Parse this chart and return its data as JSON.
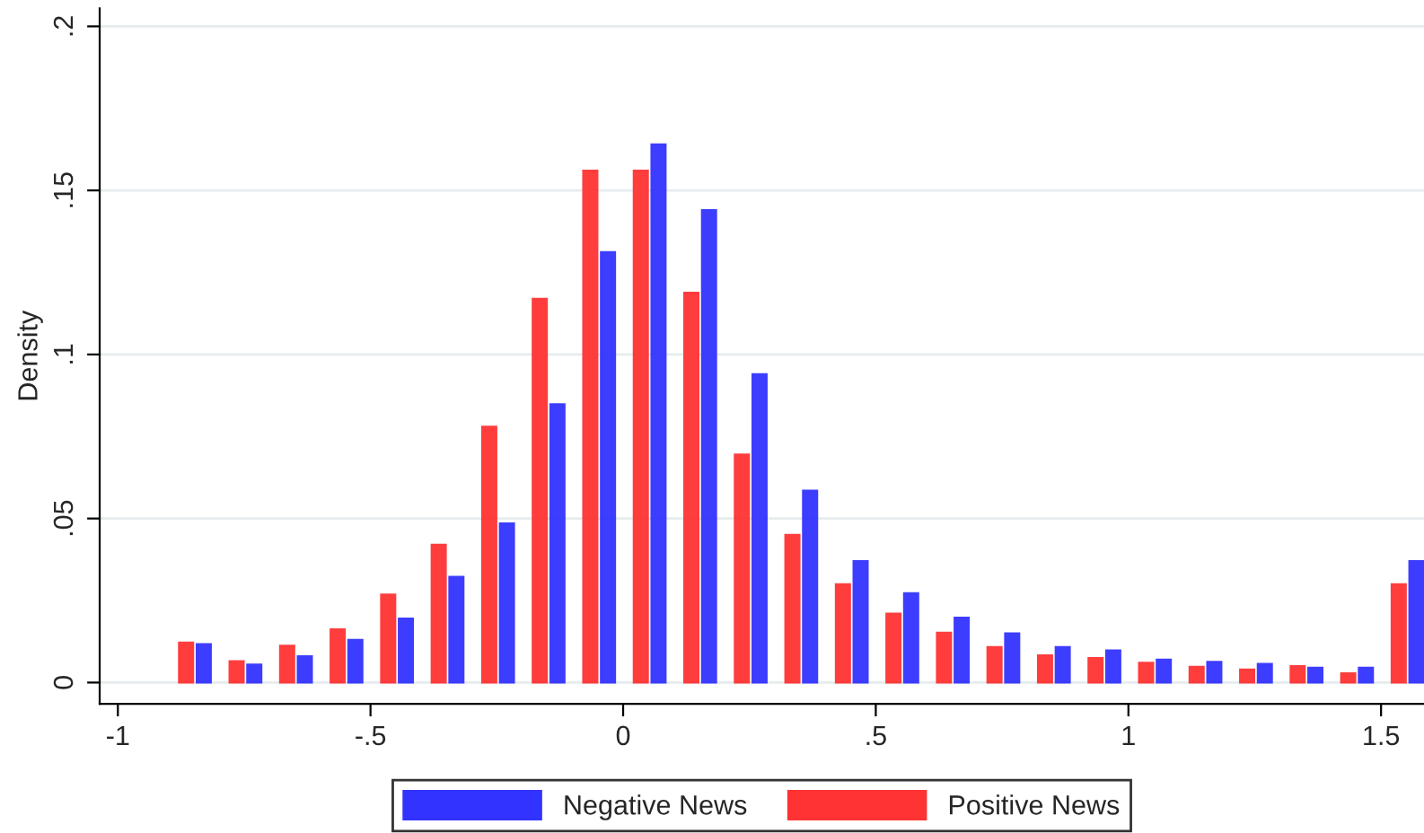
{
  "chart_data": {
    "type": "bar",
    "ylabel": "Density",
    "xlim": [
      -1.036,
      1.585
    ],
    "ylim": [
      -0.0065,
      0.2055
    ],
    "xticks": [
      {
        "value": -1,
        "label": "-1"
      },
      {
        "value": -0.5,
        "label": "-.5"
      },
      {
        "value": 0,
        "label": "0"
      },
      {
        "value": 0.5,
        "label": ".5"
      },
      {
        "value": 1,
        "label": "1"
      },
      {
        "value": 1.5,
        "label": "1.5"
      }
    ],
    "yticks": [
      {
        "value": 0,
        "label": "0"
      },
      {
        "value": 0.05,
        "label": ".05"
      },
      {
        "value": 0.1,
        "label": ".1"
      },
      {
        "value": 0.15,
        "label": ".15"
      },
      {
        "value": 0.2,
        "label": ".2"
      }
    ],
    "grid": "y",
    "legend": "bottom",
    "series": [
      {
        "name": "Negative News",
        "color": "#3333ff",
        "x": [
          -0.83,
          -0.73,
          -0.63,
          -0.53,
          -0.43,
          -0.33,
          -0.23,
          -0.13,
          -0.03,
          0.07,
          0.17,
          0.27,
          0.37,
          0.47,
          0.57,
          0.67,
          0.77,
          0.87,
          0.97,
          1.07,
          1.17,
          1.27,
          1.37,
          1.47,
          1.57
        ],
        "values": [
          0.0117,
          0.0055,
          0.008,
          0.013,
          0.0195,
          0.0322,
          0.0485,
          0.0848,
          0.1312,
          0.164,
          0.144,
          0.094,
          0.0585,
          0.037,
          0.0272,
          0.0198,
          0.015,
          0.0108,
          0.0098,
          0.007,
          0.0063,
          0.0057,
          0.0045,
          0.0045,
          0.037
        ]
      },
      {
        "name": "Positive News",
        "color": "#ff3333",
        "x": [
          -0.865,
          -0.765,
          -0.665,
          -0.565,
          -0.465,
          -0.365,
          -0.265,
          -0.165,
          -0.065,
          0.035,
          0.135,
          0.235,
          0.335,
          0.435,
          0.535,
          0.635,
          0.735,
          0.835,
          0.935,
          1.035,
          1.135,
          1.235,
          1.335,
          1.435,
          1.535
        ],
        "values": [
          0.0122,
          0.0065,
          0.0112,
          0.0162,
          0.0268,
          0.042,
          0.078,
          0.117,
          0.156,
          0.156,
          0.1188,
          0.0695,
          0.045,
          0.03,
          0.021,
          0.0152,
          0.0108,
          0.0083,
          0.0075,
          0.006,
          0.0048,
          0.004,
          0.005,
          0.0028,
          0.03
        ]
      }
    ]
  }
}
